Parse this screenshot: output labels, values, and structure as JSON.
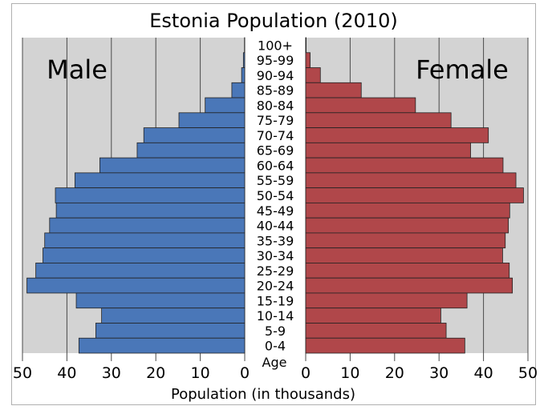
{
  "chart_data": {
    "type": "bar",
    "title": "Estonia Population (2010)",
    "xlabel": "Population (in thousands)",
    "age_axis_label": "Age",
    "xlim": [
      0,
      50
    ],
    "ticks": [
      50,
      40,
      30,
      20,
      10,
      0
    ],
    "grid": true,
    "colors": {
      "male": "#4a77b8",
      "female": "#b0474a",
      "panel": "#d3d3d3"
    },
    "categories": [
      "100+",
      "95-99",
      "90-94",
      "85-89",
      "80-84",
      "75-79",
      "70-74",
      "65-69",
      "60-64",
      "55-59",
      "50-54",
      "45-49",
      "40-44",
      "35-39",
      "30-34",
      "25-29",
      "20-24",
      "15-19",
      "10-14",
      "5-9",
      "0-4"
    ],
    "series": [
      {
        "name": "Male",
        "values": [
          0.05,
          0.3,
          0.7,
          2.9,
          8.9,
          14.8,
          22.7,
          24.2,
          32.6,
          38.2,
          42.6,
          42.4,
          43.9,
          45.0,
          45.4,
          47.0,
          49.0,
          37.9,
          32.2,
          33.5,
          37.3
        ]
      },
      {
        "name": "Female",
        "values": [
          0.1,
          1.0,
          3.3,
          12.5,
          24.7,
          32.7,
          41.1,
          37.1,
          44.4,
          47.3,
          49.0,
          45.9,
          45.6,
          44.9,
          44.3,
          45.8,
          46.5,
          36.3,
          30.4,
          31.6,
          35.8
        ]
      }
    ]
  }
}
